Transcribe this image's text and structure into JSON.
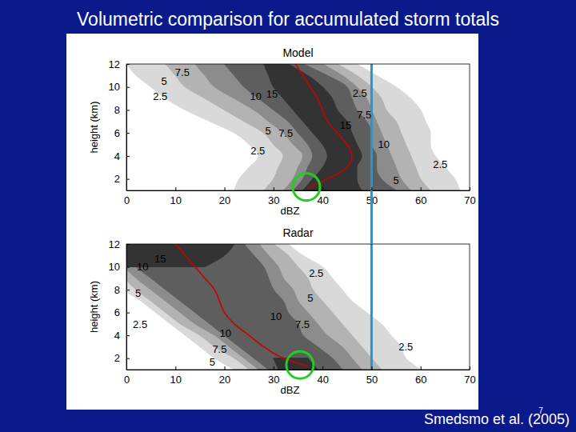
{
  "title": "Volumetric comparison for accumulated storm totals",
  "source": "Smedsmo et al. (2005)",
  "page_number": "7",
  "chart_data": [
    {
      "type": "contour",
      "title": "Model",
      "x_label": "dBZ",
      "y_label": "height (km)",
      "xlim": [
        0,
        70
      ],
      "ylim": [
        1,
        12
      ],
      "xticks": [
        0,
        10,
        20,
        30,
        40,
        50,
        60,
        70
      ],
      "yticks": [
        2,
        4,
        6,
        8,
        10,
        12
      ],
      "heights": [
        1,
        2,
        3,
        4,
        5,
        6,
        7,
        8,
        9,
        10,
        11,
        12
      ],
      "levels": [
        {
          "value": 2.5,
          "color": "#d9d9d9",
          "left": [
            22,
            23,
            25,
            27,
            25,
            22,
            17,
            12,
            8,
            5,
            2,
            0
          ],
          "right": [
            68,
            67,
            65,
            63,
            62,
            62,
            61,
            60,
            58,
            55,
            51,
            47
          ]
        },
        {
          "value": 5,
          "color": "#b3b3b3",
          "left": [
            28,
            30,
            31,
            32,
            30,
            28,
            24,
            20,
            16,
            12,
            10,
            8
          ],
          "right": [
            62,
            60,
            59,
            58,
            57,
            56,
            55,
            53,
            52,
            50,
            47,
            43
          ]
        },
        {
          "value": 7.5,
          "color": "#8c8c8c",
          "left": [
            32,
            34,
            35,
            36,
            34,
            32,
            29,
            26,
            22,
            18,
            16,
            14
          ],
          "right": [
            58,
            56,
            55,
            54,
            53,
            52,
            51,
            50,
            49,
            47,
            44,
            40
          ]
        },
        {
          "value": 10,
          "color": "#5e5e5e",
          "left": [
            34,
            36,
            37,
            38,
            37,
            35,
            33,
            30,
            27,
            24,
            22,
            20
          ],
          "right": [
            55,
            52,
            51,
            51,
            50,
            50,
            49,
            47,
            46,
            45,
            41,
            36
          ]
        },
        {
          "value": 15,
          "color": "#333333",
          "left": [
            36,
            38,
            40,
            41,
            40,
            38,
            36,
            34,
            32,
            30,
            29,
            28
          ],
          "right": [
            48,
            47,
            47,
            48,
            47,
            46,
            45,
            43,
            42,
            40,
            37,
            33
          ]
        }
      ],
      "median": {
        "color": "#cc0000",
        "x": [
          37,
          41,
          45,
          46,
          45,
          43,
          41,
          40,
          39,
          37.5,
          36,
          34.5
        ],
        "y": [
          1.2,
          2,
          3,
          4,
          5,
          6,
          7,
          8,
          9,
          10,
          11,
          12
        ]
      },
      "contour_labels": [
        {
          "value": 7.5,
          "x": 11.4,
          "y": 11.2
        },
        {
          "value": 5,
          "x": 7.7,
          "y": 10.4
        },
        {
          "value": 2.5,
          "x": 6.9,
          "y": 9.1
        },
        {
          "value": 10,
          "x": 26.4,
          "y": 9.1
        },
        {
          "value": 15,
          "x": 29.7,
          "y": 9.3
        },
        {
          "value": 5,
          "x": 28.9,
          "y": 6.1
        },
        {
          "value": 7.5,
          "x": 32.5,
          "y": 5.9
        },
        {
          "value": 2.5,
          "x": 26.8,
          "y": 4.4
        },
        {
          "value": 2.5,
          "x": 47.6,
          "y": 9.4
        },
        {
          "value": 7.5,
          "x": 48.5,
          "y": 7.5
        },
        {
          "value": 15,
          "x": 44.7,
          "y": 6.6
        },
        {
          "value": 10,
          "x": 52.5,
          "y": 4.9
        },
        {
          "value": 2.5,
          "x": 64,
          "y": 3.2
        },
        {
          "value": 5,
          "x": 55,
          "y": 1.8
        }
      ],
      "reference_x": 50,
      "highlight": {
        "x": 36.7,
        "y": 1.3
      }
    },
    {
      "type": "contour",
      "title": "Radar",
      "x_label": "dBZ",
      "y_label": "height (km)",
      "xlim": [
        0,
        70
      ],
      "ylim": [
        1,
        12
      ],
      "xticks": [
        0,
        10,
        20,
        30,
        40,
        50,
        60,
        70
      ],
      "yticks": [
        2,
        4,
        6,
        8,
        10,
        12
      ],
      "heights": [
        1,
        2,
        3,
        4,
        5,
        6,
        7,
        8,
        9,
        10,
        11,
        12
      ],
      "levels": [
        {
          "value": 2.5,
          "color": "#d9d9d9",
          "left": [
            22,
            18,
            15,
            12,
            9,
            6,
            3,
            0,
            0,
            0,
            0,
            0
          ],
          "right": [
            60,
            57,
            56,
            54,
            52,
            49,
            46,
            44,
            42,
            40,
            36,
            33
          ]
        },
        {
          "value": 5,
          "color": "#b3b3b3",
          "left": [
            25,
            22,
            18,
            15,
            11,
            8,
            5,
            2,
            0,
            0,
            0,
            0
          ],
          "right": [
            52,
            50,
            48,
            46,
            44,
            42,
            40,
            38,
            37,
            35,
            33,
            30
          ]
        },
        {
          "value": 7.5,
          "color": "#8c8c8c",
          "left": [
            27,
            24,
            21,
            18,
            14,
            11,
            8,
            5,
            2,
            0,
            0,
            0
          ],
          "right": [
            48,
            46,
            44,
            41,
            39,
            37,
            35,
            34,
            32,
            31,
            29,
            27
          ]
        },
        {
          "value": 10,
          "color": "#5e5e5e",
          "left": [
            29,
            26,
            23,
            20,
            17,
            14,
            11,
            8,
            5,
            2,
            0,
            0
          ],
          "right": [
            44,
            42,
            39,
            36,
            35,
            33,
            32,
            30,
            29,
            28,
            26,
            24
          ]
        },
        {
          "value": 15,
          "color": "#333333",
          "left": [
            31,
            30,
            null,
            null,
            null,
            null,
            null,
            null,
            null,
            0,
            0,
            0
          ],
          "right": [
            39,
            37,
            null,
            null,
            null,
            null,
            null,
            null,
            null,
            16,
            20,
            22
          ]
        }
      ],
      "median": {
        "color": "#cc0000",
        "x": [
          37,
          32,
          28,
          25,
          22,
          20,
          19,
          18,
          16,
          14,
          12,
          10
        ],
        "y": [
          1.3,
          2,
          3,
          4,
          5,
          6,
          7,
          8,
          9,
          10,
          11,
          12
        ]
      },
      "contour_labels": [
        {
          "value": 15,
          "x": 6.9,
          "y": 10.6
        },
        {
          "value": 10,
          "x": 3.3,
          "y": 9.9
        },
        {
          "value": 5,
          "x": 2.4,
          "y": 7.6
        },
        {
          "value": 2.5,
          "x": 2.8,
          "y": 4.9
        },
        {
          "value": 10,
          "x": 20.2,
          "y": 4.1
        },
        {
          "value": 7.5,
          "x": 19,
          "y": 2.7
        },
        {
          "value": 5,
          "x": 17.5,
          "y": 1.6
        },
        {
          "value": 2.5,
          "x": 38.7,
          "y": 9.4
        },
        {
          "value": 5,
          "x": 37.5,
          "y": 7.2
        },
        {
          "value": 10,
          "x": 30.5,
          "y": 5.6
        },
        {
          "value": 7.5,
          "x": 35.9,
          "y": 4.9
        },
        {
          "value": 2.5,
          "x": 57,
          "y": 2.9
        }
      ],
      "reference_x": 50,
      "highlight": {
        "x": 35.4,
        "y": 1.4
      }
    }
  ]
}
